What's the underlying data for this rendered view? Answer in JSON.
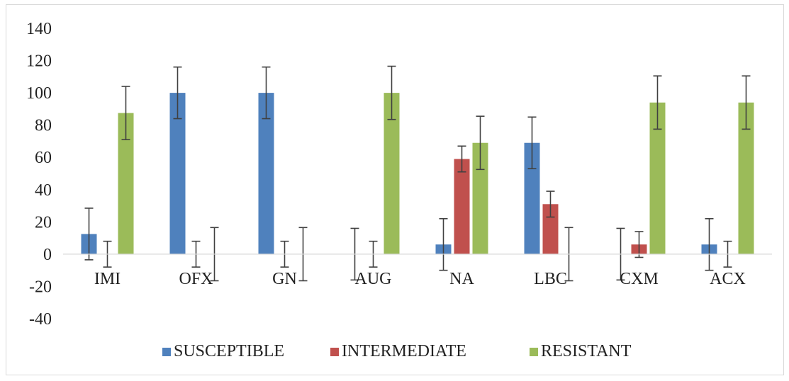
{
  "chart_data": {
    "type": "bar",
    "categories": [
      "IMI",
      "OFX",
      "GN",
      "AUG",
      "NA",
      "LBC",
      "CXM",
      "ACX"
    ],
    "series": [
      {
        "name": "SUSCEPTIBLE",
        "color": "#4f81bd",
        "values": [
          12.5,
          100,
          100,
          0,
          6,
          69,
          0,
          6
        ],
        "error": [
          16,
          16,
          16,
          16,
          16,
          16,
          16,
          16
        ]
      },
      {
        "name": "INTERMEDIATE",
        "color": "#c0504d",
        "values": [
          0,
          0,
          0,
          0,
          59,
          31,
          6,
          0
        ],
        "error": [
          8,
          8,
          8,
          8,
          8,
          8,
          8,
          8
        ]
      },
      {
        "name": "RESISTANT",
        "color": "#9bbb59",
        "values": [
          87.5,
          0,
          0,
          100,
          69,
          0,
          94,
          94
        ],
        "error": [
          16.5,
          16.5,
          16.5,
          16.5,
          16.5,
          16.5,
          16.5,
          16.5
        ]
      }
    ],
    "ylim": [
      -40,
      140
    ],
    "yticks": [
      140,
      120,
      100,
      80,
      60,
      40,
      20,
      0,
      -20,
      -40
    ],
    "title": "",
    "xlabel": "",
    "ylabel": "",
    "grid": false,
    "legend_position": "bottom"
  }
}
